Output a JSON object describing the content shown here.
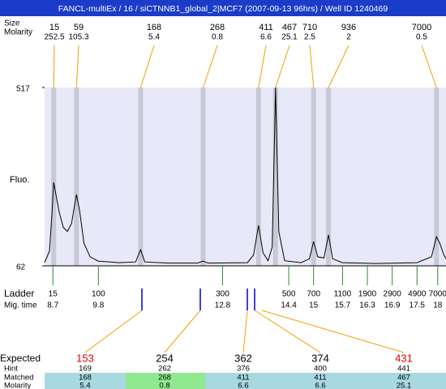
{
  "chart_data": {
    "type": "electropherogram",
    "title": "FANCL-multiEx / 16 / siCTNNB1_global_2|MCF7 (2007-09-13 96hrs) / Well ID 1240469",
    "top_labels": {
      "size": "Size",
      "molarity": "Molarity"
    },
    "ylabel": "Fluo.",
    "ylim": [
      62,
      517
    ],
    "yticks": [
      62,
      517
    ],
    "xlim": [
      8.5,
      18.2
    ],
    "peaks": [
      {
        "size": 15,
        "molarity": 252.5,
        "time": 8.72
      },
      {
        "size": 59,
        "molarity": 105.3,
        "time": 9.27
      },
      {
        "size": 168,
        "molarity": 5.4,
        "time": 10.82
      },
      {
        "size": 268,
        "molarity": 0.8,
        "time": 12.33
      },
      {
        "size": 411,
        "molarity": 6.6,
        "time": 13.67
      },
      {
        "size": 467,
        "molarity": 25.1,
        "time": 14.08
      },
      {
        "size": 710,
        "molarity": 2.5,
        "time": 15.0
      },
      {
        "size": 936,
        "molarity": 2,
        "time": 15.36
      },
      {
        "size": 7000,
        "molarity": 0.5,
        "time": 17.97
      }
    ],
    "trace": {
      "x": [
        8.5,
        8.62,
        8.68,
        8.72,
        8.78,
        8.85,
        8.95,
        9.05,
        9.15,
        9.27,
        9.35,
        9.45,
        9.6,
        9.8,
        10.3,
        10.7,
        10.82,
        10.92,
        11.5,
        12.2,
        12.33,
        12.45,
        13.4,
        13.55,
        13.67,
        13.78,
        13.9,
        14.0,
        14.08,
        14.16,
        14.3,
        14.7,
        14.9,
        15.0,
        15.1,
        15.25,
        15.36,
        15.46,
        15.7,
        16.5,
        17.5,
        17.85,
        17.97,
        18.05,
        18.15,
        18.2
      ],
      "values": [
        70,
        100,
        200,
        275,
        240,
        200,
        160,
        150,
        170,
        244,
        200,
        120,
        85,
        74,
        70,
        72,
        103,
        72,
        69,
        69,
        74,
        69,
        70,
        90,
        165,
        95,
        75,
        110,
        517,
        150,
        75,
        70,
        80,
        124,
        85,
        82,
        141,
        80,
        70,
        68,
        70,
        85,
        136,
        120,
        90,
        80
      ]
    },
    "ladder_label": "Ladder",
    "mig_label": "Mig. time",
    "ladder": [
      {
        "size": 15,
        "time": 8.7
      },
      {
        "size": 100,
        "time": 9.8
      },
      {
        "size": 300,
        "time": 12.8
      },
      {
        "size": 500,
        "time": 14.4
      },
      {
        "size": 700,
        "time": 15
      },
      {
        "size": 1100,
        "time": 15.7
      },
      {
        "size": 1900,
        "time": 16.3
      },
      {
        "size": 2900,
        "time": 16.9
      },
      {
        "size": 4900,
        "time": 17.5
      },
      {
        "size": 7000,
        "time": 18
      }
    ],
    "table": {
      "row_labels": [
        "Expected",
        "Hint",
        "Matched",
        "Molarity"
      ],
      "expected": [
        153,
        254,
        362,
        374,
        431
      ],
      "hint": [
        169,
        262,
        376,
        400,
        441
      ],
      "matched": [
        168,
        268,
        411,
        411,
        467
      ],
      "molarity": [
        5.4,
        0.8,
        6.6,
        6.6,
        25.1
      ]
    }
  }
}
